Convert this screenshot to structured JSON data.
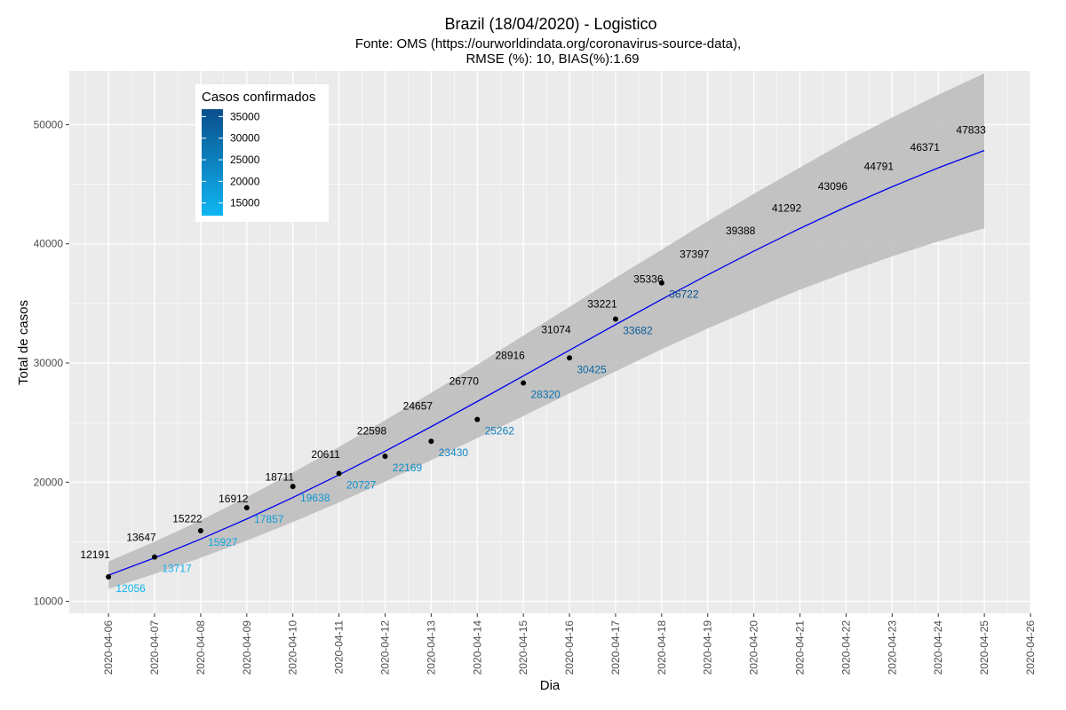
{
  "chart_data": {
    "type": "line",
    "title": "Brazil (18/04/2020) - Logistico",
    "subtitle_line1": "Fonte: OMS (https://ourworldindata.org/coronavirus-source-data),",
    "subtitle_line2": "RMSE (%): 10, BIAS(%):1.69",
    "xlabel": "Dia",
    "ylabel": "Total de casos",
    "x_ticks": [
      "2020-04-06",
      "2020-04-07",
      "2020-04-08",
      "2020-04-09",
      "2020-04-10",
      "2020-04-11",
      "2020-04-12",
      "2020-04-13",
      "2020-04-14",
      "2020-04-15",
      "2020-04-16",
      "2020-04-17",
      "2020-04-18",
      "2020-04-19",
      "2020-04-20",
      "2020-04-21",
      "2020-04-22",
      "2020-04-23",
      "2020-04-24",
      "2020-04-25",
      "2020-04-26"
    ],
    "y_ticks": [
      10000,
      20000,
      30000,
      40000,
      50000
    ],
    "ylim": [
      9000,
      54500
    ],
    "xlim_days": [
      -0.85,
      20.0
    ],
    "observed": {
      "dates": [
        "2020-04-06",
        "2020-04-07",
        "2020-04-08",
        "2020-04-09",
        "2020-04-10",
        "2020-04-11",
        "2020-04-12",
        "2020-04-13",
        "2020-04-14",
        "2020-04-15",
        "2020-04-16",
        "2020-04-17",
        "2020-04-18"
      ],
      "values": [
        12056,
        13717,
        15927,
        17857,
        19638,
        20727,
        22169,
        23430,
        25262,
        28320,
        30425,
        33682,
        36722
      ]
    },
    "predicted": {
      "dates": [
        "2020-04-06",
        "2020-04-07",
        "2020-04-08",
        "2020-04-09",
        "2020-04-10",
        "2020-04-11",
        "2020-04-12",
        "2020-04-13",
        "2020-04-14",
        "2020-04-15",
        "2020-04-16",
        "2020-04-17",
        "2020-04-18",
        "2020-04-19",
        "2020-04-20",
        "2020-04-21",
        "2020-04-22",
        "2020-04-23",
        "2020-04-24",
        "2020-04-25"
      ],
      "values": [
        12191,
        13647,
        15222,
        16912,
        18711,
        20611,
        22598,
        24657,
        26770,
        28916,
        31074,
        33221,
        35336,
        37397,
        39388,
        41292,
        43096,
        44791,
        46371,
        47833
      ],
      "band_lower": [
        11050,
        12300,
        13650,
        15100,
        16650,
        18300,
        20050,
        21850,
        23700,
        25550,
        27450,
        29300,
        31150,
        32900,
        34550,
        36150,
        37600,
        38950,
        40200,
        41300
      ],
      "band_upper": [
        13350,
        15000,
        16800,
        18750,
        20800,
        22950,
        25200,
        27500,
        29850,
        32300,
        34700,
        37150,
        39500,
        41900,
        44200,
        46400,
        48600,
        50600,
        52500,
        54300
      ]
    },
    "line_color": "#0000ee",
    "band_color": "#bebebe",
    "legend": {
      "title": "Casos confirmados",
      "labels": [
        35000,
        30000,
        25000,
        20000,
        15000
      ],
      "range": [
        12056,
        36722
      ],
      "color_low": "#0fb6f3",
      "color_high": "#0a4f8c",
      "position": "top-left"
    },
    "grid": true,
    "panel_background": "#ebebeb"
  }
}
